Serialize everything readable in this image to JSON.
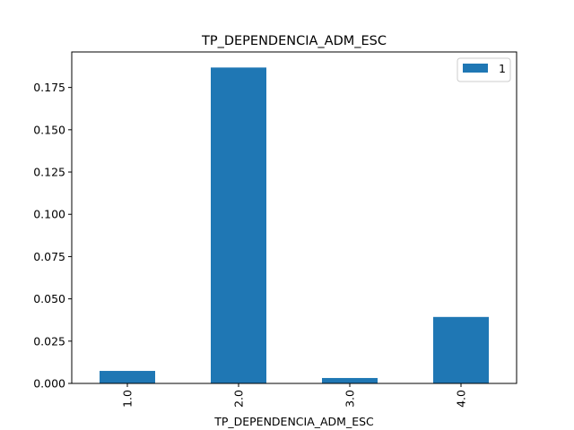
{
  "chart_data": {
    "type": "bar",
    "title": "TP_DEPENDENCIA_ADM_ESC",
    "xlabel": "TP_DEPENDENCIA_ADM_ESC",
    "ylabel": "",
    "categories": [
      "1.0",
      "2.0",
      "3.0",
      "4.0"
    ],
    "series": [
      {
        "name": "1",
        "values": [
          0.0074,
          0.1868,
          0.0032,
          0.0393
        ],
        "color": "#1f77b4"
      }
    ],
    "ylim": [
      0,
      0.196
    ],
    "yticks": [
      0.0,
      0.025,
      0.05,
      0.075,
      0.1,
      0.125,
      0.15,
      0.175
    ],
    "ytick_labels": [
      "0.000",
      "0.025",
      "0.050",
      "0.075",
      "0.100",
      "0.125",
      "0.150",
      "0.175"
    ],
    "xtick_rotation": "vertical",
    "grid": false,
    "legend_position": "upper right"
  }
}
